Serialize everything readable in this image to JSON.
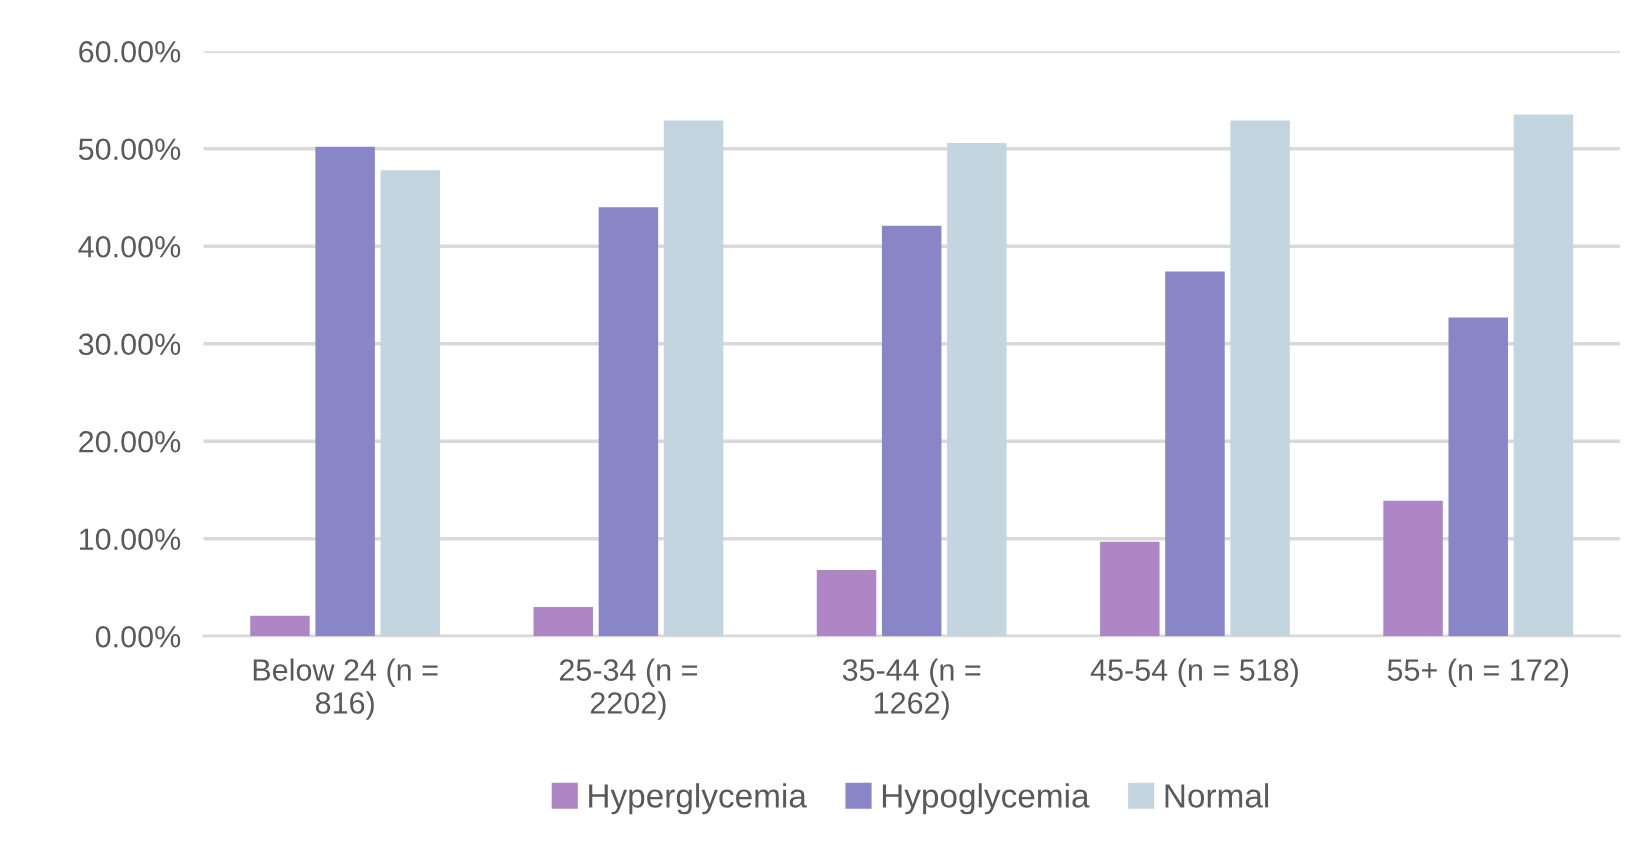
{
  "chart_data": {
    "type": "bar",
    "categories": [
      "Below 24 (n =\n816)",
      "25-34 (n =\n2202)",
      "35-44 (n =\n1262)",
      "45-54 (n = 518)",
      "55+ (n = 172)"
    ],
    "series": [
      {
        "name": "Hyperglycemia",
        "color": "#ae86c6",
        "values": [
          2.1,
          3.0,
          6.8,
          9.7,
          13.9
        ]
      },
      {
        "name": "Hypoglycemia",
        "color": "#8886c6",
        "values": [
          50.2,
          44.0,
          42.1,
          37.4,
          32.7
        ]
      },
      {
        "name": "Normal",
        "color": "#c3d5df",
        "values": [
          47.8,
          52.9,
          50.6,
          52.9,
          53.5
        ]
      }
    ],
    "ylim": [
      0,
      60
    ],
    "yticks": [
      {
        "value": 0,
        "label": "0.00%"
      },
      {
        "value": 10,
        "label": "10.00%"
      },
      {
        "value": 20,
        "label": "20.00%"
      },
      {
        "value": 30,
        "label": "30.00%"
      },
      {
        "value": 40,
        "label": "40.00%"
      },
      {
        "value": 50,
        "label": "50.00%"
      },
      {
        "value": 60,
        "label": "60.00%"
      }
    ],
    "grid": "y",
    "legend": "bottom"
  }
}
